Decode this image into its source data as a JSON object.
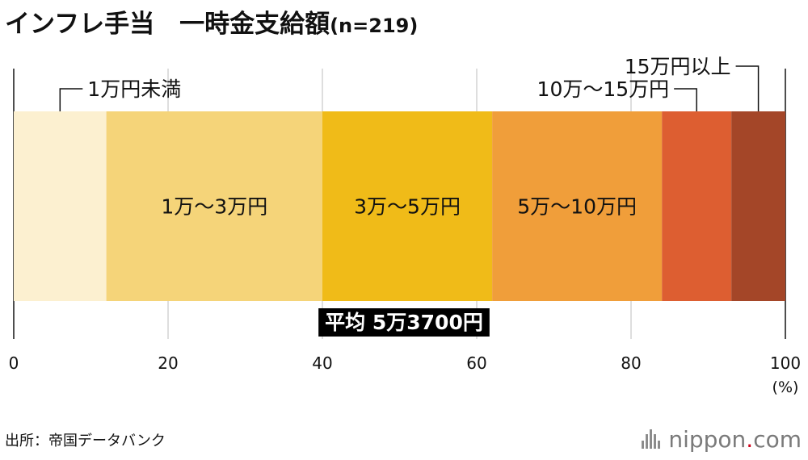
{
  "title": {
    "main": "インフレ手当　一時金支給額",
    "n": "(n=219)"
  },
  "chart_data": {
    "type": "bar",
    "orientation": "horizontal-stacked-100",
    "categories": [
      "1万円未満",
      "1万〜3万円",
      "3万〜5万円",
      "5万〜10万円",
      "10万〜15万円",
      "15万円以上"
    ],
    "values": [
      12,
      28,
      22,
      22,
      9,
      7
    ],
    "colors": [
      "#fcf0d0",
      "#f5d479",
      "#f0bb18",
      "#f09e3a",
      "#dd5e31",
      "#a44628"
    ],
    "label_position": [
      "outside",
      "inside",
      "inside",
      "inside",
      "outside",
      "outside"
    ],
    "xlim": [
      0,
      100
    ],
    "ticks": [
      0,
      20,
      40,
      60,
      80,
      100
    ],
    "tick_labels": [
      "0",
      "20",
      "40",
      "60",
      "80",
      "100"
    ],
    "unit_label": "(%)",
    "grid": true,
    "annotation": "平均 5万3700円"
  },
  "source": "出所：帝国データバンク",
  "logo": {
    "name": "nippon",
    "dot": ".",
    "tld": "com"
  }
}
